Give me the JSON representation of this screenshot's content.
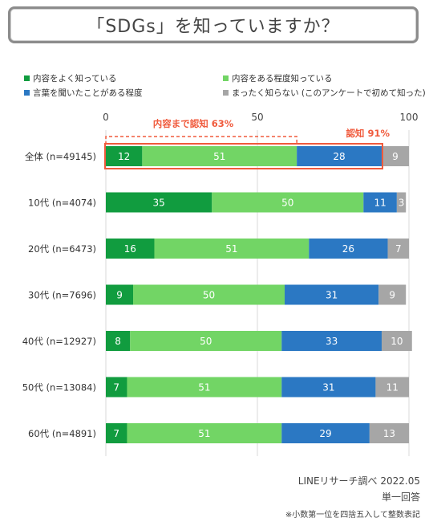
{
  "title": "「SDGs」を知っていますか？",
  "colors": {
    "know_content": "#119c3f",
    "know_somewhat": "#72d565",
    "heard": "#2b78c3",
    "unknown": "#a6a6a6",
    "highlight": "#f05a3c"
  },
  "legend": [
    {
      "label": "内容をよく知っている",
      "color_key": "know_content"
    },
    {
      "label": "内容をある程度知っている",
      "color_key": "know_somewhat"
    },
    {
      "label": "言葉を聞いたことがある程度",
      "color_key": "heard"
    },
    {
      "label": "まったく知らない (このアンケートで初めて知った)",
      "color_key": "unknown"
    }
  ],
  "annotations": {
    "content_known": "内容まで認知 63%",
    "aware": "認知 91%"
  },
  "footer": {
    "source": "LINEリサーチ調べ 2022.05",
    "answer_type": "単一回答",
    "note": "※小数第一位を四捨五入して整数表記"
  },
  "chart_data": {
    "type": "bar",
    "orientation": "horizontal",
    "stacked": true,
    "title": "「SDGs」を知っていますか？",
    "xlim": [
      0,
      100
    ],
    "xticks": [
      0,
      50,
      100
    ],
    "grid": true,
    "legend_position": "top",
    "categories": [
      "全体 (n=49145)",
      "10代 (n=4074)",
      "20代 (n=6473)",
      "30代 (n=7696)",
      "40代 (n=12927)",
      "50代 (n=13084)",
      "60代 (n=4891)"
    ],
    "series": [
      {
        "name": "内容をよく知っている",
        "color": "#119c3f",
        "values": [
          12,
          35,
          16,
          9,
          8,
          7,
          7
        ]
      },
      {
        "name": "内容をある程度知っている",
        "color": "#72d565",
        "values": [
          51,
          50,
          51,
          50,
          50,
          51,
          51
        ]
      },
      {
        "name": "言葉を聞いたことがある程度",
        "color": "#2b78c3",
        "values": [
          28,
          11,
          26,
          31,
          33,
          31,
          29
        ]
      },
      {
        "name": "まったく知らない (このアンケートで初めて知った)",
        "color": "#a6a6a6",
        "values": [
          9,
          3,
          7,
          9,
          10,
          11,
          13
        ]
      }
    ]
  }
}
